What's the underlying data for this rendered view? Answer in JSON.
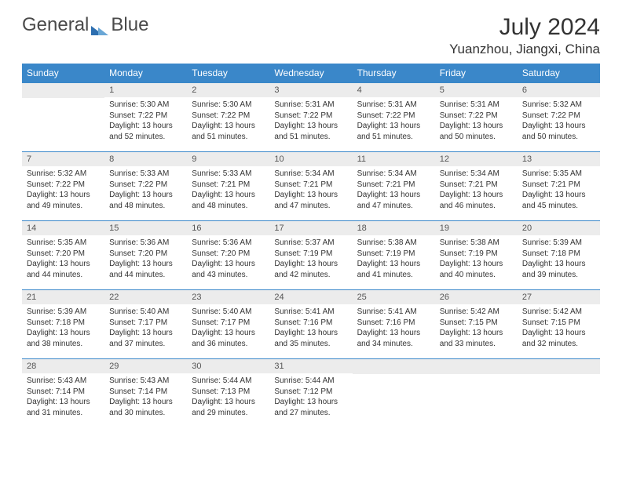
{
  "logo": {
    "word1": "General",
    "word2": "Blue",
    "accent_color": "#2d6fb0"
  },
  "title": "July 2024",
  "location": "Yuanzhou, Jiangxi, China",
  "colors": {
    "header_bg": "#3a87c9",
    "header_fg": "#ffffff",
    "daynum_bg": "#ececec",
    "border": "#3a87c9",
    "text": "#333333"
  },
  "weekdays": [
    "Sunday",
    "Monday",
    "Tuesday",
    "Wednesday",
    "Thursday",
    "Friday",
    "Saturday"
  ],
  "grid": [
    [
      null,
      {
        "n": "1",
        "sr": "5:30 AM",
        "ss": "7:22 PM",
        "dl": "13 hours and 52 minutes."
      },
      {
        "n": "2",
        "sr": "5:30 AM",
        "ss": "7:22 PM",
        "dl": "13 hours and 51 minutes."
      },
      {
        "n": "3",
        "sr": "5:31 AM",
        "ss": "7:22 PM",
        "dl": "13 hours and 51 minutes."
      },
      {
        "n": "4",
        "sr": "5:31 AM",
        "ss": "7:22 PM",
        "dl": "13 hours and 51 minutes."
      },
      {
        "n": "5",
        "sr": "5:31 AM",
        "ss": "7:22 PM",
        "dl": "13 hours and 50 minutes."
      },
      {
        "n": "6",
        "sr": "5:32 AM",
        "ss": "7:22 PM",
        "dl": "13 hours and 50 minutes."
      }
    ],
    [
      {
        "n": "7",
        "sr": "5:32 AM",
        "ss": "7:22 PM",
        "dl": "13 hours and 49 minutes."
      },
      {
        "n": "8",
        "sr": "5:33 AM",
        "ss": "7:22 PM",
        "dl": "13 hours and 48 minutes."
      },
      {
        "n": "9",
        "sr": "5:33 AM",
        "ss": "7:21 PM",
        "dl": "13 hours and 48 minutes."
      },
      {
        "n": "10",
        "sr": "5:34 AM",
        "ss": "7:21 PM",
        "dl": "13 hours and 47 minutes."
      },
      {
        "n": "11",
        "sr": "5:34 AM",
        "ss": "7:21 PM",
        "dl": "13 hours and 47 minutes."
      },
      {
        "n": "12",
        "sr": "5:34 AM",
        "ss": "7:21 PM",
        "dl": "13 hours and 46 minutes."
      },
      {
        "n": "13",
        "sr": "5:35 AM",
        "ss": "7:21 PM",
        "dl": "13 hours and 45 minutes."
      }
    ],
    [
      {
        "n": "14",
        "sr": "5:35 AM",
        "ss": "7:20 PM",
        "dl": "13 hours and 44 minutes."
      },
      {
        "n": "15",
        "sr": "5:36 AM",
        "ss": "7:20 PM",
        "dl": "13 hours and 44 minutes."
      },
      {
        "n": "16",
        "sr": "5:36 AM",
        "ss": "7:20 PM",
        "dl": "13 hours and 43 minutes."
      },
      {
        "n": "17",
        "sr": "5:37 AM",
        "ss": "7:19 PM",
        "dl": "13 hours and 42 minutes."
      },
      {
        "n": "18",
        "sr": "5:38 AM",
        "ss": "7:19 PM",
        "dl": "13 hours and 41 minutes."
      },
      {
        "n": "19",
        "sr": "5:38 AM",
        "ss": "7:19 PM",
        "dl": "13 hours and 40 minutes."
      },
      {
        "n": "20",
        "sr": "5:39 AM",
        "ss": "7:18 PM",
        "dl": "13 hours and 39 minutes."
      }
    ],
    [
      {
        "n": "21",
        "sr": "5:39 AM",
        "ss": "7:18 PM",
        "dl": "13 hours and 38 minutes."
      },
      {
        "n": "22",
        "sr": "5:40 AM",
        "ss": "7:17 PM",
        "dl": "13 hours and 37 minutes."
      },
      {
        "n": "23",
        "sr": "5:40 AM",
        "ss": "7:17 PM",
        "dl": "13 hours and 36 minutes."
      },
      {
        "n": "24",
        "sr": "5:41 AM",
        "ss": "7:16 PM",
        "dl": "13 hours and 35 minutes."
      },
      {
        "n": "25",
        "sr": "5:41 AM",
        "ss": "7:16 PM",
        "dl": "13 hours and 34 minutes."
      },
      {
        "n": "26",
        "sr": "5:42 AM",
        "ss": "7:15 PM",
        "dl": "13 hours and 33 minutes."
      },
      {
        "n": "27",
        "sr": "5:42 AM",
        "ss": "7:15 PM",
        "dl": "13 hours and 32 minutes."
      }
    ],
    [
      {
        "n": "28",
        "sr": "5:43 AM",
        "ss": "7:14 PM",
        "dl": "13 hours and 31 minutes."
      },
      {
        "n": "29",
        "sr": "5:43 AM",
        "ss": "7:14 PM",
        "dl": "13 hours and 30 minutes."
      },
      {
        "n": "30",
        "sr": "5:44 AM",
        "ss": "7:13 PM",
        "dl": "13 hours and 29 minutes."
      },
      {
        "n": "31",
        "sr": "5:44 AM",
        "ss": "7:12 PM",
        "dl": "13 hours and 27 minutes."
      },
      null,
      null,
      null
    ]
  ],
  "labels": {
    "sunrise": "Sunrise:",
    "sunset": "Sunset:",
    "daylight": "Daylight:"
  }
}
